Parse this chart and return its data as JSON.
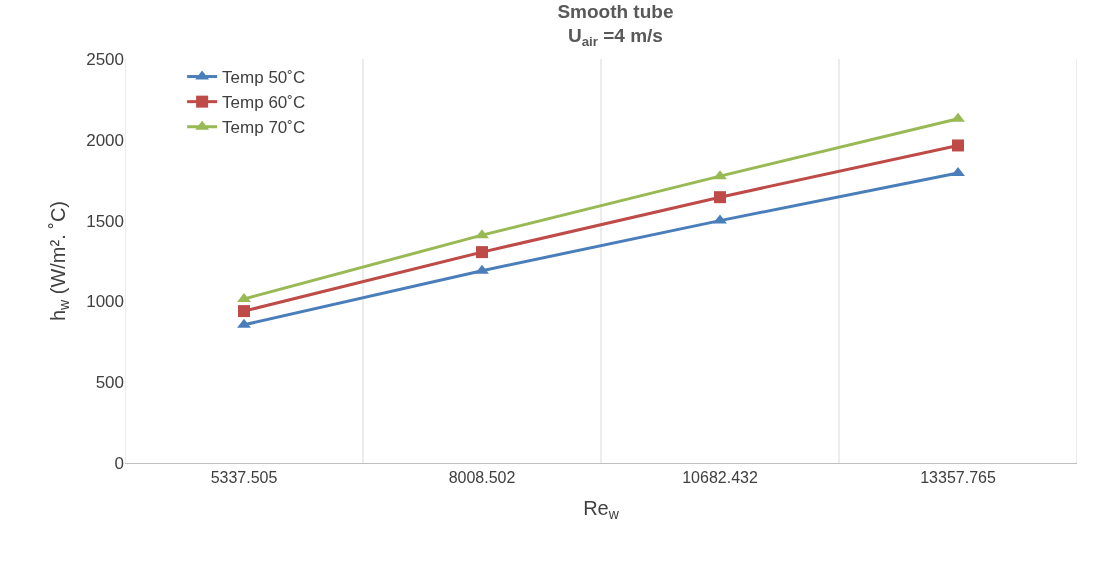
{
  "chart_data": {
    "type": "line",
    "title": "Smooth tube\nU$_{air}$ =4 m/s",
    "xlabel": "Re$_{w}$",
    "ylabel": "h$_{w}$ (W/m². ˚C)",
    "categories": [
      "5337.505",
      "8008.502",
      "10682.432",
      "13357.765"
    ],
    "series": [
      {
        "name": "Temp 50˚C",
        "color": "#4a7ebb",
        "marker": "triangle",
        "values": [
          855,
          1190,
          1500,
          1795
        ]
      },
      {
        "name": "Temp 60˚C",
        "color": "#be4b48",
        "marker": "square",
        "values": [
          940,
          1305,
          1645,
          1965
        ]
      },
      {
        "name": "Temp 70˚C",
        "color": "#98b954",
        "marker": "triangle",
        "values": [
          1015,
          1410,
          1775,
          2130
        ]
      }
    ],
    "ylim": [
      0,
      2500
    ],
    "yticks": [
      0,
      500,
      1000,
      1500,
      2000,
      2500
    ],
    "grid": "x",
    "legend": "top left",
    "line_style": "solid"
  }
}
